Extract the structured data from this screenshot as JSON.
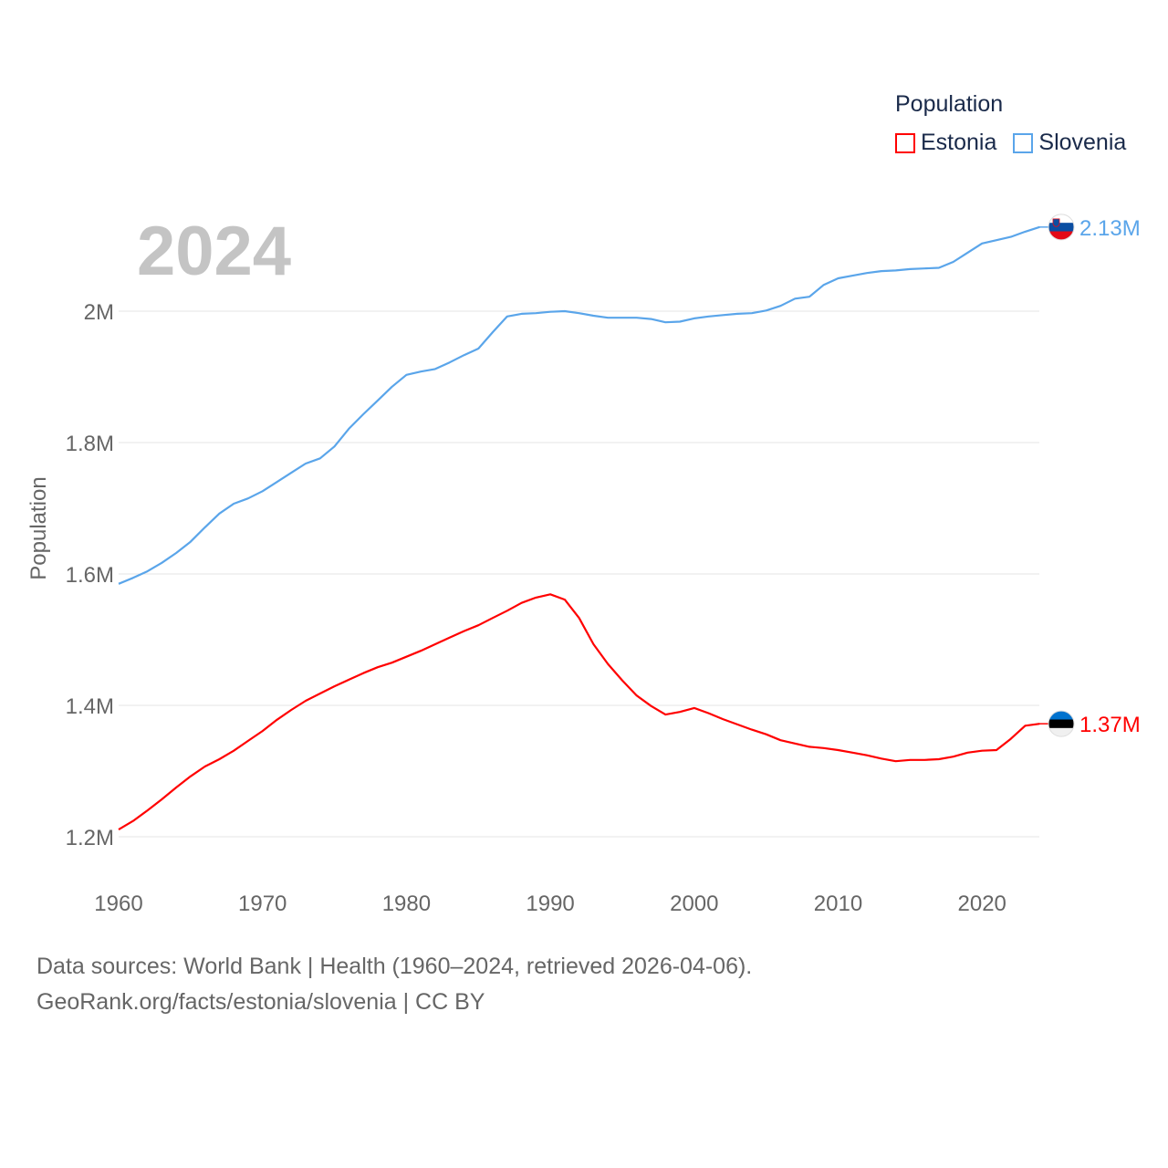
{
  "legend": {
    "title": "Population",
    "items": [
      {
        "label": "Estonia",
        "color": "#ff0000"
      },
      {
        "label": "Slovenia",
        "color": "#5aa5ea"
      }
    ]
  },
  "year_label": "2024",
  "footer": {
    "line1": "Data sources: World Bank | Health (1960–2024, retrieved 2026-04-06).",
    "line2": "GeoRank.org/facts/estonia/slovenia | CC BY"
  },
  "chart_data": {
    "type": "line",
    "title": "Population",
    "xlabel": "",
    "ylabel": "Population",
    "xlim": [
      1960,
      2024
    ],
    "ylim": [
      1.2,
      2.13
    ],
    "x_ticks": [
      1960,
      1970,
      1980,
      1990,
      2000,
      2010,
      2020
    ],
    "y_ticks": [
      {
        "value": 1.2,
        "label": "1.2M"
      },
      {
        "value": 1.4,
        "label": "1.4M"
      },
      {
        "value": 1.6,
        "label": "1.6M"
      },
      {
        "value": 1.8,
        "label": "1.8M"
      },
      {
        "value": 2.0,
        "label": "2M"
      }
    ],
    "grid": true,
    "legend_position": "top-right",
    "x_start": 1960,
    "series": [
      {
        "name": "Slovenia",
        "color": "#5aa5ea",
        "end_label": "2.13M",
        "values": [
          1.585,
          1.594,
          1.604,
          1.617,
          1.632,
          1.649,
          1.671,
          1.692,
          1.707,
          1.715,
          1.726,
          1.74,
          1.754,
          1.768,
          1.776,
          1.794,
          1.821,
          1.843,
          1.864,
          1.885,
          1.903,
          1.908,
          1.912,
          1.922,
          1.933,
          1.943,
          1.968,
          1.992,
          1.996,
          1.997,
          1.999,
          2.0,
          1.997,
          1.993,
          1.99,
          1.99,
          1.99,
          1.988,
          1.983,
          1.984,
          1.989,
          1.992,
          1.994,
          1.996,
          1.997,
          2.001,
          2.008,
          2.019,
          2.022,
          2.04,
          2.05,
          2.054,
          2.058,
          2.061,
          2.062,
          2.064,
          2.065,
          2.066,
          2.075,
          2.089,
          2.103,
          2.108,
          2.113,
          2.121,
          2.128
        ]
      },
      {
        "name": "Estonia",
        "color": "#ff0000",
        "end_label": "1.37M",
        "values": [
          1.211,
          1.224,
          1.24,
          1.257,
          1.275,
          1.292,
          1.307,
          1.318,
          1.331,
          1.346,
          1.361,
          1.378,
          1.393,
          1.407,
          1.418,
          1.429,
          1.439,
          1.449,
          1.458,
          1.465,
          1.474,
          1.483,
          1.493,
          1.503,
          1.513,
          1.522,
          1.533,
          1.544,
          1.556,
          1.564,
          1.569,
          1.561,
          1.533,
          1.493,
          1.463,
          1.438,
          1.415,
          1.399,
          1.386,
          1.39,
          1.396,
          1.388,
          1.379,
          1.371,
          1.363,
          1.356,
          1.347,
          1.342,
          1.337,
          1.335,
          1.332,
          1.328,
          1.324,
          1.319,
          1.315,
          1.317,
          1.317,
          1.318,
          1.322,
          1.328,
          1.331,
          1.332,
          1.349,
          1.369,
          1.372
        ]
      }
    ]
  }
}
